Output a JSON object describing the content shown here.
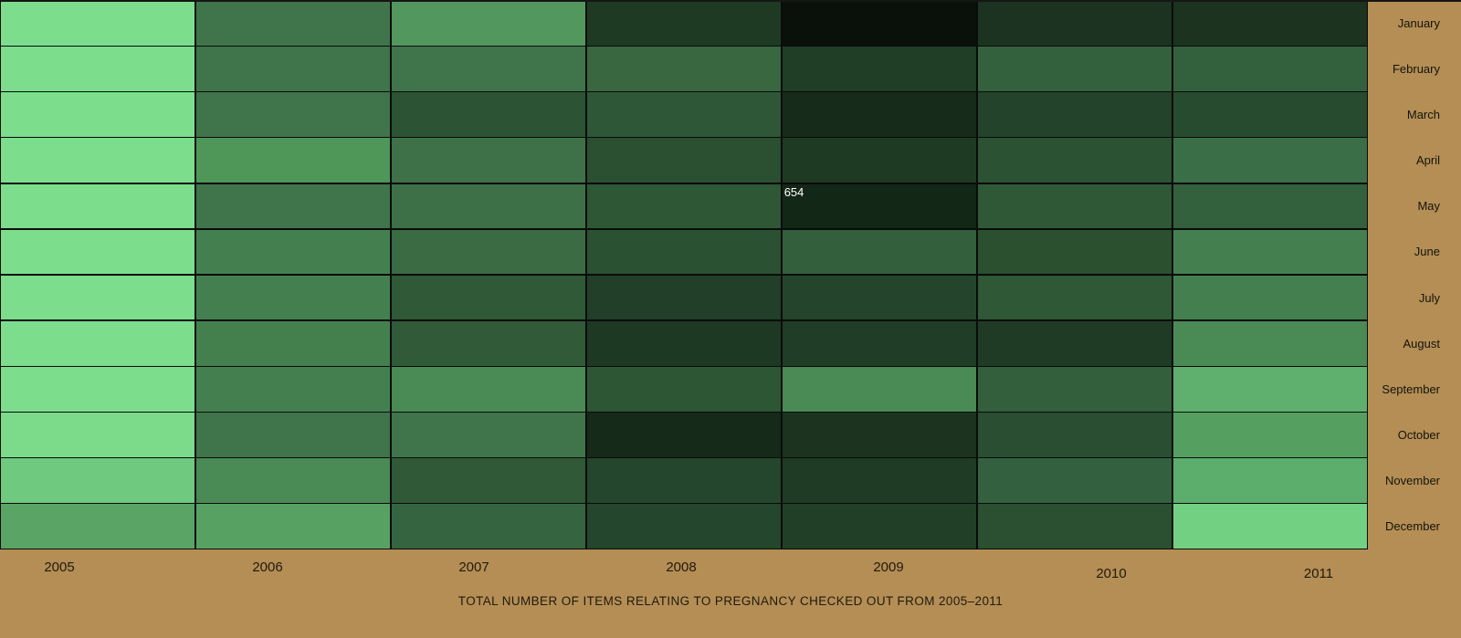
{
  "chart_data": {
    "type": "heatmap",
    "title": "TOTAL NUMBER OF ITEMS RELATING TO PREGNANCY CHECKED OUT FROM 2005–2011",
    "x_categories": [
      "2005",
      "2006",
      "2007",
      "2008",
      "2009",
      "2010",
      "2011"
    ],
    "y_categories": [
      "January",
      "February",
      "March",
      "April",
      "May",
      "June",
      "July",
      "August",
      "September",
      "October",
      "November",
      "December"
    ],
    "legend_position": "none",
    "grid": true,
    "value_encoding": "color intensity: lighter green = fewer items, darker green/black = more items",
    "annotations": [
      {
        "month": "May",
        "year": "2009",
        "value": "654"
      }
    ],
    "cell_colors": [
      [
        "#7CDE8C",
        "#40744A",
        "#52975E",
        "#1E3A23",
        "#0A100A",
        "#1B3320",
        "#1C331F"
      ],
      [
        "#7CDE8C",
        "#40744A",
        "#40744A",
        "#386740",
        "#203D26",
        "#33613D",
        "#33613D"
      ],
      [
        "#7CDE8C",
        "#40744A",
        "#2C5434",
        "#2E5737",
        "#162B19",
        "#23432A",
        "#264B2E"
      ],
      [
        "#7CDE8C",
        "#4F9659",
        "#3E7147",
        "#2A4F31",
        "#1F3A22",
        "#2B5233",
        "#3A6E46"
      ],
      [
        "#7CDE8C",
        "#40744A",
        "#3D7046",
        "#2D5735",
        "#132716",
        "#2E5836",
        "#33613D"
      ],
      [
        "#7CDE8C",
        "#44804F",
        "#3A6B42",
        "#2A5132",
        "#335F3D",
        "#2A5030",
        "#44804F"
      ],
      [
        "#7CDE8C",
        "#44804F",
        "#2F5937",
        "#223F29",
        "#24452C",
        "#2E5836",
        "#44804F"
      ],
      [
        "#7CDE8C",
        "#447F4E",
        "#305A38",
        "#1D3823",
        "#203D27",
        "#1F3B25",
        "#4A8A55"
      ],
      [
        "#7CDE8C",
        "#44804F",
        "#4A8A55",
        "#2D5635",
        "#4A8A55",
        "#335F3D",
        "#5FAF6F"
      ],
      [
        "#7BDB8B",
        "#40744A",
        "#40744A",
        "#152A19",
        "#1B331F",
        "#294E31",
        "#55A061"
      ],
      [
        "#6FC97F",
        "#4A8A55",
        "#2F5937",
        "#24462C",
        "#1F3B25",
        "#336140",
        "#5BAE6B"
      ],
      [
        "#5AA466",
        "#57A263",
        "#356540",
        "#24462C",
        "#213F27",
        "#2A5031",
        "#72D082"
      ]
    ]
  },
  "colors": {
    "background_tan": "#B48E55",
    "grid_line": "#0B0B0B",
    "annotation_text": "#FFFFFF",
    "month_label_text": "#14140C",
    "year_and_title_text": "#221A0E",
    "lightest_cell": "#7CDE8C",
    "darkest_cell": "#0A100A"
  }
}
